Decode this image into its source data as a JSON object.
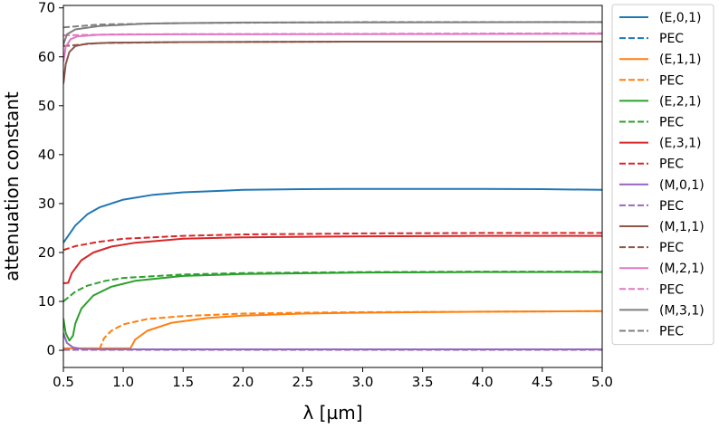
{
  "chart_data": {
    "type": "line",
    "xlabel": "λ [µm]",
    "ylabel": "attenuation constant",
    "xlim": [
      0.5,
      5.0
    ],
    "ylim": [
      -3.5,
      70.5
    ],
    "xticks": [
      0.5,
      1.0,
      1.5,
      2.0,
      2.5,
      3.0,
      3.5,
      4.0,
      4.5,
      5.0
    ],
    "xtick_labels": [
      "0.5",
      "1.0",
      "1.5",
      "2.0",
      "2.5",
      "3.0",
      "3.5",
      "4.0",
      "4.5",
      "5.0"
    ],
    "yticks": [
      0,
      10,
      20,
      30,
      40,
      50,
      60,
      70
    ],
    "ytick_labels": [
      "0",
      "10",
      "20",
      "30",
      "40",
      "50",
      "60",
      "70"
    ],
    "grid": false,
    "legend_position": "outside-right",
    "series": [
      {
        "name": "(E,0,1)",
        "color": "#1f77b4",
        "dash": "solid",
        "points": [
          [
            0.5,
            22
          ],
          [
            0.6,
            25.5
          ],
          [
            0.7,
            27.8
          ],
          [
            0.8,
            29.2
          ],
          [
            1.0,
            30.8
          ],
          [
            1.25,
            31.8
          ],
          [
            1.5,
            32.3
          ],
          [
            2.0,
            32.8
          ],
          [
            2.5,
            32.95
          ],
          [
            3.0,
            33.0
          ],
          [
            3.5,
            33.0
          ],
          [
            4.0,
            33.0
          ],
          [
            4.5,
            32.95
          ],
          [
            5.0,
            32.8
          ]
        ]
      },
      {
        "name": "PEC",
        "color": "#1f77b4",
        "dash": "dashed",
        "points": [
          [
            0.5,
            0.2
          ],
          [
            5.0,
            0.2
          ]
        ]
      },
      {
        "name": "(E,1,1)",
        "color": "#ff7f0e",
        "dash": "solid",
        "points": [
          [
            0.5,
            0.4
          ],
          [
            1.0,
            0.4
          ],
          [
            1.06,
            0.4
          ],
          [
            1.1,
            2.2
          ],
          [
            1.2,
            4.0
          ],
          [
            1.4,
            5.6
          ],
          [
            1.7,
            6.6
          ],
          [
            2.0,
            7.1
          ],
          [
            2.5,
            7.5
          ],
          [
            3.0,
            7.7
          ],
          [
            3.5,
            7.8
          ],
          [
            4.0,
            7.9
          ],
          [
            4.5,
            7.95
          ],
          [
            5.0,
            8.0
          ]
        ]
      },
      {
        "name": "PEC",
        "color": "#ff7f0e",
        "dash": "dashed",
        "points": [
          [
            0.8,
            0.2
          ],
          [
            0.84,
            2.5
          ],
          [
            0.9,
            4.0
          ],
          [
            1.0,
            5.3
          ],
          [
            1.2,
            6.4
          ],
          [
            1.5,
            7.0
          ],
          [
            2.0,
            7.5
          ],
          [
            2.5,
            7.7
          ],
          [
            3.0,
            7.8
          ],
          [
            4.0,
            7.9
          ],
          [
            5.0,
            8.0
          ]
        ]
      },
      {
        "name": "(E,2,1)",
        "color": "#2ca02c",
        "dash": "solid",
        "points": [
          [
            0.5,
            6.5
          ],
          [
            0.52,
            3.5
          ],
          [
            0.55,
            2.0
          ],
          [
            0.58,
            3.0
          ],
          [
            0.6,
            5.5
          ],
          [
            0.65,
            8.5
          ],
          [
            0.75,
            11.2
          ],
          [
            0.9,
            13.0
          ],
          [
            1.1,
            14.2
          ],
          [
            1.5,
            15.2
          ],
          [
            2.0,
            15.6
          ],
          [
            3.0,
            15.9
          ],
          [
            4.0,
            16.0
          ],
          [
            5.0,
            16.0
          ]
        ]
      },
      {
        "name": "PEC",
        "color": "#2ca02c",
        "dash": "dashed",
        "points": [
          [
            0.5,
            10.0
          ],
          [
            0.6,
            12.0
          ],
          [
            0.7,
            13.2
          ],
          [
            0.85,
            14.2
          ],
          [
            1.0,
            14.8
          ],
          [
            1.5,
            15.5
          ],
          [
            2.0,
            15.8
          ],
          [
            3.0,
            16.0
          ],
          [
            4.0,
            16.1
          ],
          [
            5.0,
            16.1
          ]
        ]
      },
      {
        "name": "(E,3,1)",
        "color": "#d62728",
        "dash": "solid",
        "points": [
          [
            0.5,
            13.7
          ],
          [
            0.54,
            13.8
          ],
          [
            0.57,
            15.8
          ],
          [
            0.65,
            18.4
          ],
          [
            0.75,
            20.0
          ],
          [
            0.9,
            21.2
          ],
          [
            1.1,
            22.0
          ],
          [
            1.5,
            22.8
          ],
          [
            2.0,
            23.1
          ],
          [
            3.0,
            23.3
          ],
          [
            4.0,
            23.4
          ],
          [
            5.0,
            23.4
          ]
        ]
      },
      {
        "name": "PEC",
        "color": "#d62728",
        "dash": "dashed",
        "points": [
          [
            0.5,
            20.5
          ],
          [
            0.6,
            21.3
          ],
          [
            0.8,
            22.2
          ],
          [
            1.0,
            22.8
          ],
          [
            1.5,
            23.4
          ],
          [
            2.0,
            23.7
          ],
          [
            3.0,
            23.9
          ],
          [
            4.0,
            24.0
          ],
          [
            5.0,
            24.0
          ]
        ]
      },
      {
        "name": "(M,0,1)",
        "color": "#9467bd",
        "dash": "solid",
        "points": [
          [
            0.5,
            3.5
          ],
          [
            0.53,
            1.5
          ],
          [
            0.58,
            0.6
          ],
          [
            0.65,
            0.3
          ],
          [
            0.8,
            0.2
          ],
          [
            5.0,
            0.2
          ]
        ]
      },
      {
        "name": "PEC",
        "color": "#9467bd",
        "dash": "dashed",
        "points": [
          [
            0.5,
            0.1
          ],
          [
            5.0,
            0.1
          ]
        ]
      },
      {
        "name": "(M,1,1)",
        "color": "#8c564b",
        "dash": "solid",
        "points": [
          [
            0.5,
            54.5
          ],
          [
            0.52,
            58.5
          ],
          [
            0.55,
            61.0
          ],
          [
            0.6,
            62.2
          ],
          [
            0.7,
            62.7
          ],
          [
            0.9,
            62.9
          ],
          [
            1.5,
            63.0
          ],
          [
            3.0,
            63.1
          ],
          [
            5.0,
            63.1
          ]
        ]
      },
      {
        "name": "PEC",
        "color": "#8c564b",
        "dash": "dashed",
        "points": [
          [
            0.5,
            62.2
          ],
          [
            0.8,
            62.8
          ],
          [
            1.5,
            63.0
          ],
          [
            3.0,
            63.1
          ],
          [
            5.0,
            63.1
          ]
        ]
      },
      {
        "name": "(M,2,1)",
        "color": "#e377c2",
        "dash": "solid",
        "points": [
          [
            0.5,
            59.0
          ],
          [
            0.52,
            62.0
          ],
          [
            0.56,
            63.6
          ],
          [
            0.62,
            64.2
          ],
          [
            0.8,
            64.5
          ],
          [
            1.5,
            64.6
          ],
          [
            5.0,
            64.7
          ]
        ]
      },
      {
        "name": "PEC",
        "color": "#e377c2",
        "dash": "dashed",
        "points": [
          [
            0.5,
            64.4
          ],
          [
            1.0,
            64.6
          ],
          [
            5.0,
            64.8
          ]
        ]
      },
      {
        "name": "(M,3,1)",
        "color": "#7f7f7f",
        "dash": "solid",
        "points": [
          [
            0.5,
            62.5
          ],
          [
            0.53,
            64.6
          ],
          [
            0.6,
            65.6
          ],
          [
            0.8,
            66.3
          ],
          [
            1.2,
            66.8
          ],
          [
            2.0,
            67.0
          ],
          [
            5.0,
            67.1
          ]
        ]
      },
      {
        "name": "PEC",
        "color": "#7f7f7f",
        "dash": "dashed",
        "points": [
          [
            0.5,
            66.0
          ],
          [
            0.8,
            66.6
          ],
          [
            1.5,
            66.9
          ],
          [
            3.0,
            67.1
          ],
          [
            5.0,
            67.1
          ]
        ]
      }
    ]
  }
}
